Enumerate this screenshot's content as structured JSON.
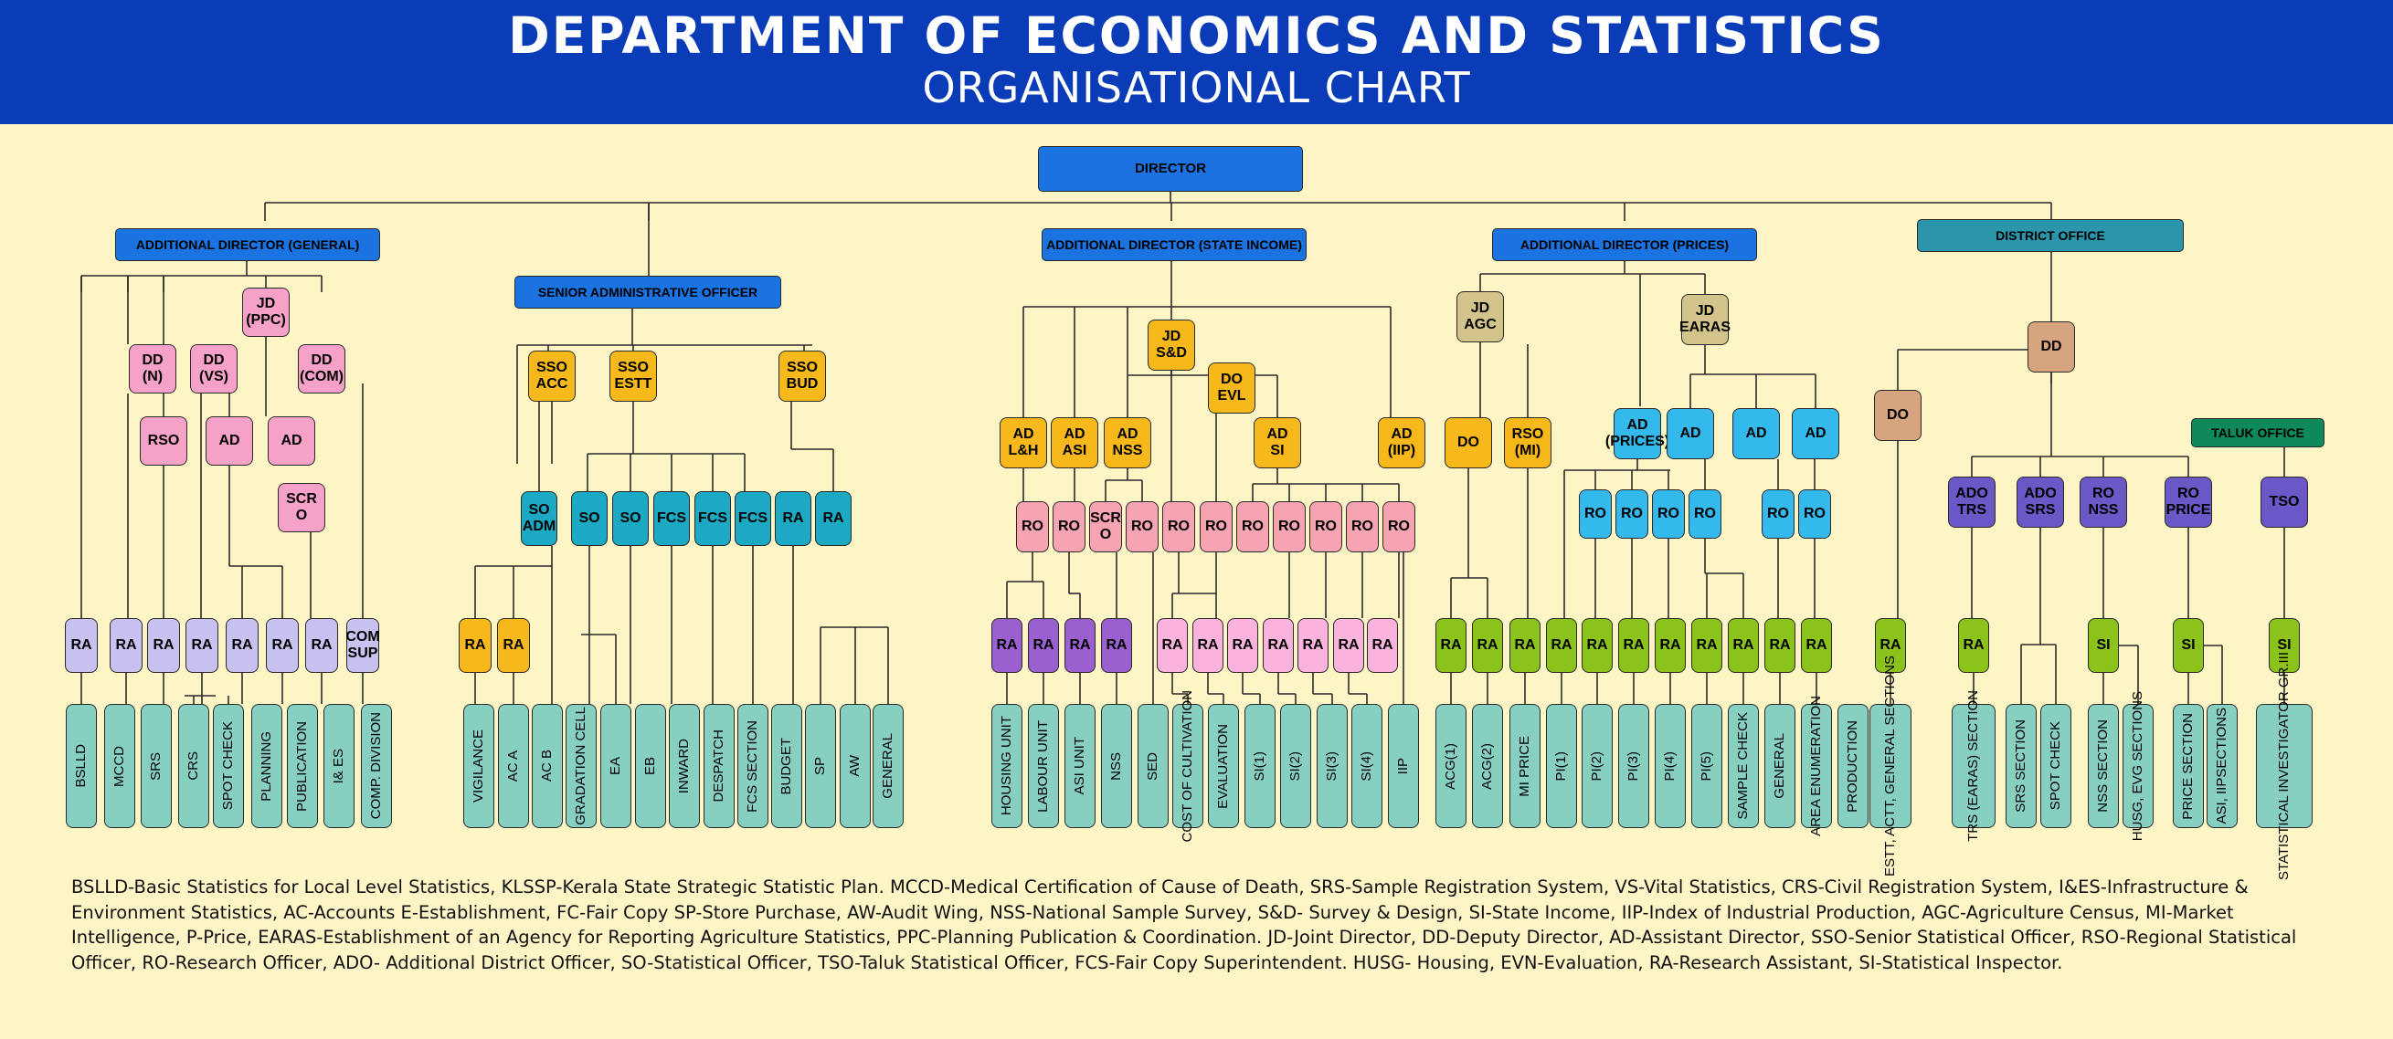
{
  "header": {
    "title": "DEPARTMENT OF ECONOMICS AND STATISTICS",
    "subtitle": "ORGANISATIONAL CHART"
  },
  "colors": {
    "header_bg": "#0a3cb8",
    "background": "#fdf5c6",
    "blue": "#1a73e0",
    "teal_office": "#2b95ab",
    "pink": "#f6a2c8",
    "lavender": "#c7c2ef",
    "gold": "#f6b81a",
    "cyan": "#1ba9c4",
    "mint": "#86cfc1",
    "purple": "#9a60cf",
    "salmon": "#f6a3b2",
    "light_pink": "#f9b3dc",
    "khaki": "#d2c48a",
    "sky": "#33b9ec",
    "green": "#8cc21c",
    "tan": "#d6a47e",
    "indigo": "#6a58c6",
    "dark_green": "#0e8a5a"
  },
  "chart": {
    "director": "DIRECTOR",
    "ad_general": "ADDITIONAL DIRECTOR (GENERAL)",
    "sao": "SENIOR ADMINISTRATIVE OFFICER",
    "ad_state_income": "ADDITIONAL DIRECTOR (STATE INCOME)",
    "ad_prices": "ADDITIONAL DIRECTOR (PRICES)",
    "district_office": "DISTRICT OFFICE",
    "taluk_office": "TALUK OFFICE",
    "general": {
      "jd_ppc": "JD\n(PPC)",
      "dd_n": "DD\n(N)",
      "dd_vs": "DD\n(VS)",
      "dd_com": "DD\n(COM)",
      "rso": "RSO",
      "ad1": "AD",
      "ad2": "AD",
      "scro": "SCR\nO",
      "ra": [
        "RA",
        "RA",
        "RA",
        "RA",
        "RA",
        "RA",
        "RA",
        "COM\nSUP"
      ],
      "sections": [
        "BSLLD",
        "MCCD",
        "SRS",
        "CRS",
        "SPOT CHECK",
        "PLANNING",
        "PUBLICATION",
        "I& ES",
        "COMP. DIVISION"
      ]
    },
    "admin": {
      "sso": [
        "SSO\nACC",
        "SSO\nESTT",
        "SSO\nBUD"
      ],
      "so_adm": "SO\nADM",
      "mid": [
        "SO",
        "SO",
        "FCS",
        "FCS",
        "FCS",
        "RA",
        "RA"
      ],
      "ra": [
        "RA",
        "RA"
      ],
      "sections": [
        "VIGILANCE",
        "AC A",
        "AC B",
        "GRADATION CELL",
        "EA",
        "EB",
        "INWARD",
        "DESPATCH",
        "FCS SECTION",
        "BUDGET",
        "SP",
        "AW",
        "GENERAL"
      ]
    },
    "state_income": {
      "jd_sd": "JD\nS&D",
      "do_evl": "DO\nEVL",
      "ad": [
        "AD\nL&H",
        "AD\nASI",
        "AD\nNSS",
        "AD\nSI",
        "AD\n(IIP)"
      ],
      "ro": [
        "RO",
        "RO",
        "SCR\nO",
        "RO",
        "RO",
        "RO",
        "RO",
        "RO",
        "RO",
        "RO",
        "RO"
      ],
      "ra_purple": [
        "RA",
        "RA",
        "RA",
        "RA"
      ],
      "ra_pink": [
        "RA",
        "RA",
        "RA",
        "RA",
        "RA",
        "RA",
        "RA"
      ],
      "sections": [
        "HOUSING UNIT",
        "LABOUR UNIT",
        "ASI UNIT",
        "NSS",
        "SED",
        "COST OF CULTIVATION",
        "EVALUATION",
        "SI(1)",
        "SI(2)",
        "SI(3)",
        "SI(4)",
        "IIP"
      ]
    },
    "prices": {
      "jd_agc": "JD\nAGC",
      "jd_earas": "JD\nEARAS",
      "do": "DO",
      "rso_mi": "RSO\n(MI)",
      "ad_prices": "AD\n(PRICES)",
      "ad": [
        "AD",
        "AD",
        "AD"
      ],
      "ro": [
        "RO",
        "RO",
        "RO",
        "RO",
        "RO",
        "RO"
      ],
      "ra": [
        "RA",
        "RA",
        "RA",
        "RA",
        "RA",
        "RA",
        "RA",
        "RA",
        "RA",
        "RA",
        "RA"
      ],
      "sections": [
        "ACG(1)",
        "ACG(2)",
        "MI PRICE",
        "PI(1)",
        "PI(2)",
        "PI(3)",
        "PI(4)",
        "PI(5)",
        "SAMPLE CHECK",
        "GENERAL",
        "AREA ENUMERATION",
        "PRODUCTION"
      ]
    },
    "district": {
      "dd": "DD",
      "do": "DO",
      "ado": [
        "ADO\nTRS",
        "ADO\nSRS",
        "RO\nNSS",
        "RO\nPRICE"
      ],
      "tso": "TSO",
      "ra": [
        "RA",
        "RA"
      ],
      "si": [
        "SI",
        "SI",
        "SI"
      ],
      "sections": [
        "ESTT, ACTT, GENERAL SECTIONS",
        "TRS (EARAS) SECTION",
        "SRS SECTION",
        "SPOT CHECK",
        "NSS SECTION",
        "HUSG, EVG SECTIONS",
        "PRICE SECTION",
        "ASI, IIPSECTIONS",
        "STATISTICAL INVESTIGATOR GR.III"
      ]
    }
  },
  "legend": "BSLLD-Basic Statistics for Local Level Statistics, KLSSP-Kerala State Strategic Statistic Plan. MCCD-Medical Certification of Cause of Death, SRS-Sample Registration System, VS-Vital Statistics, CRS-Civil Registration System, I&ES-Infrastructure & Environment Statistics, AC-Accounts E-Establishment, FC-Fair Copy SP-Store Purchase, AW-Audit Wing, NSS-National Sample Survey, S&D- Survey & Design, SI-State Income, IIP-Index of Industrial Production, AGC-Agriculture Census, MI-Market Intelligence, P-Price, EARAS-Establishment of an Agency for Reporting Agriculture Statistics, PPC-Planning Publication & Coordination. JD-Joint Director, DD-Deputy Director, AD-Assistant Director, SSO-Senior Statistical Officer, RSO-Regional Statistical Officer, RO-Research Officer, ADO- Additional District Officer, SO-Statistical Officer, TSO-Taluk Statistical Officer, FCS-Fair Copy Superintendent. HUSG- Housing, EVN-Evaluation, RA-Research Assistant, SI-Statistical Inspector."
}
